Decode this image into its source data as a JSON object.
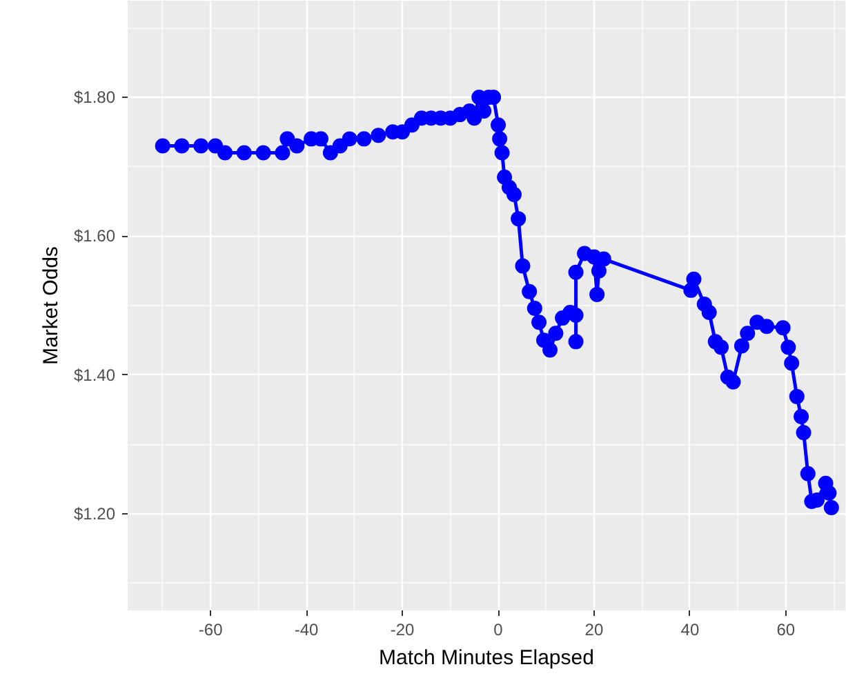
{
  "chart_data": {
    "type": "line",
    "xlabel": "Match Minutes Elapsed",
    "ylabel": "Market Odds",
    "marker": "circle",
    "line_style": "solid",
    "grid": true,
    "xlim": [
      -77.3,
      72.4
    ],
    "ylim": [
      1.061,
      1.939
    ],
    "xticks": [
      {
        "value": -70,
        "label": null
      },
      -60,
      {
        "value": -50,
        "label": null
      },
      -40,
      {
        "value": -30,
        "label": null
      },
      -20,
      {
        "value": -10,
        "label": null
      },
      0,
      {
        "value": 10,
        "label": null
      },
      20,
      {
        "value": 30,
        "label": null
      },
      40,
      {
        "value": 50,
        "label": null
      },
      60,
      {
        "value": 70,
        "label": null
      }
    ],
    "yticks": [
      {
        "value": 1.1,
        "label": null
      },
      {
        "value": 1.2,
        "label": "$1.20"
      },
      {
        "value": 1.3,
        "label": null
      },
      {
        "value": 1.4,
        "label": "$1.40"
      },
      {
        "value": 1.5,
        "label": null
      },
      {
        "value": 1.6,
        "label": "$1.60"
      },
      {
        "value": 1.7,
        "label": null
      },
      {
        "value": 1.8,
        "label": "$1.80"
      },
      {
        "value": 1.9,
        "label": null
      }
    ],
    "series": [
      {
        "color": "#0000ff",
        "x": [
          -70,
          -66,
          -62,
          -59,
          -57,
          -53,
          -49,
          -45,
          -44,
          -42,
          -39,
          -37,
          -35,
          -33,
          -31,
          -28,
          -25,
          -22,
          -20,
          -18,
          -16,
          -14,
          -12,
          -10,
          -8,
          -6,
          -5,
          -4,
          -3,
          -2,
          -1,
          0,
          0.3,
          0.8,
          1.3,
          2.3,
          3.3,
          4.2,
          5.1,
          6.5,
          7.6,
          8.5,
          9.5,
          10.8,
          12,
          13.4,
          15,
          16.2,
          16.2,
          16.2,
          18,
          20,
          20.6,
          21,
          22,
          40.2,
          40.8,
          43,
          44,
          45.3,
          46.5,
          47.9,
          49,
          50.8,
          52,
          54,
          56,
          59.4,
          60.5,
          61.2,
          62.3,
          63.2,
          63.7,
          64.6,
          65.4,
          66.5,
          68.3,
          69,
          69.5
        ],
        "values": [
          1.73,
          1.73,
          1.73,
          1.73,
          1.72,
          1.72,
          1.72,
          1.72,
          1.74,
          1.73,
          1.74,
          1.74,
          1.72,
          1.73,
          1.74,
          1.74,
          1.745,
          1.75,
          1.75,
          1.76,
          1.77,
          1.77,
          1.77,
          1.77,
          1.775,
          1.78,
          1.77,
          1.8,
          1.78,
          1.8,
          1.8,
          1.76,
          1.74,
          1.72,
          1.685,
          1.67,
          1.66,
          1.625,
          1.557,
          1.52,
          1.496,
          1.476,
          1.45,
          1.436,
          1.46,
          1.482,
          1.49,
          1.486,
          1.448,
          1.548,
          1.575,
          1.57,
          1.516,
          1.55,
          1.567,
          1.522,
          1.538,
          1.502,
          1.49,
          1.448,
          1.44,
          1.397,
          1.39,
          1.442,
          1.46,
          1.476,
          1.47,
          1.468,
          1.44,
          1.417,
          1.369,
          1.34,
          1.317,
          1.258,
          1.218,
          1.22,
          1.244,
          1.23,
          1.209
        ]
      }
    ]
  }
}
